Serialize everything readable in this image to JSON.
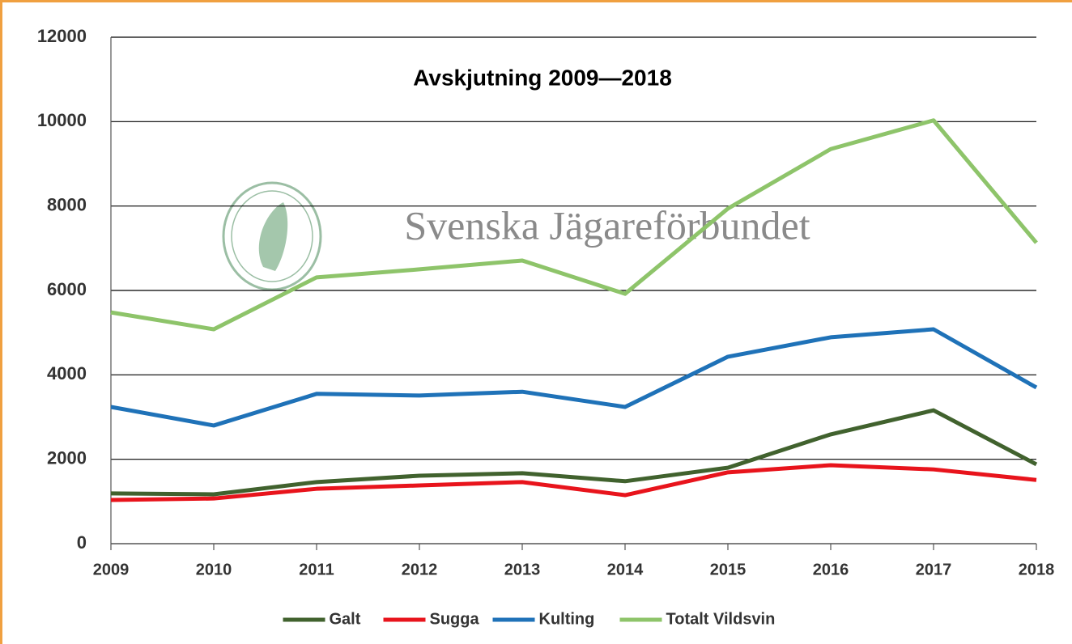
{
  "chart_data": {
    "type": "line",
    "title": "Avskjutning 2009—2018",
    "watermark": "Svenska Jägareförbundet",
    "categories": [
      "2009",
      "2010",
      "2011",
      "2012",
      "2013",
      "2014",
      "2015",
      "2016",
      "2017",
      "2018"
    ],
    "series": [
      {
        "name": "Galt",
        "color": "#41622e",
        "values": [
          1190,
          1170,
          1460,
          1610,
          1670,
          1480,
          1800,
          2590,
          3160,
          1880
        ]
      },
      {
        "name": "Sugga",
        "color": "#e8141c",
        "values": [
          1035,
          1070,
          1300,
          1380,
          1460,
          1150,
          1690,
          1860,
          1760,
          1510
        ]
      },
      {
        "name": "Kulting",
        "color": "#1f72b8",
        "values": [
          3240,
          2800,
          3550,
          3510,
          3600,
          3240,
          4430,
          4890,
          5080,
          3700
        ]
      },
      {
        "name": "Totalt Vildsvin",
        "color": "#8ec46a",
        "values": [
          5480,
          5080,
          6310,
          6500,
          6710,
          5920,
          7940,
          9350,
          10030,
          7130
        ]
      }
    ],
    "ylim": [
      0,
      12000
    ],
    "yticks": [
      0,
      2000,
      4000,
      6000,
      8000,
      10000,
      12000
    ],
    "grid": true
  }
}
